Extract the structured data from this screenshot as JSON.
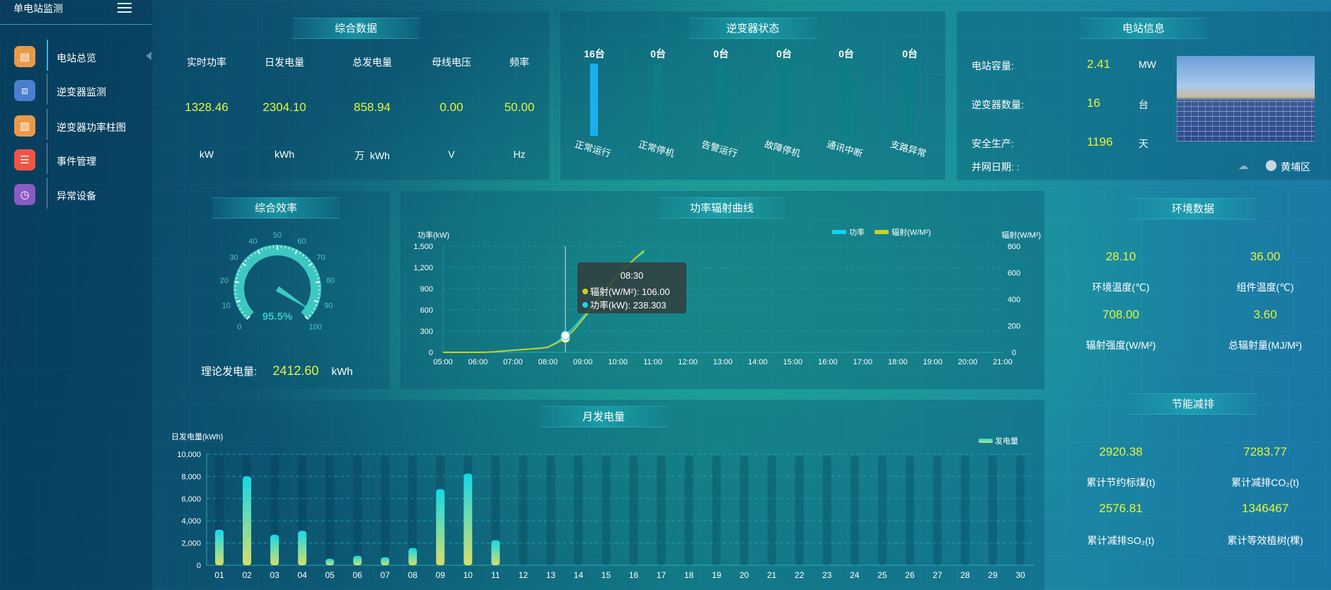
{
  "sidebar": {
    "title": "单电站监测",
    "menu_icon": "hamburger-icon",
    "items": [
      {
        "label": "电站总览",
        "icon": "document-icon",
        "color": "#e89a4a",
        "active": true
      },
      {
        "label": "逆变器监测",
        "icon": "monitor-icon",
        "color": "#4a7fd0",
        "active": false
      },
      {
        "label": "逆变器功率柱图",
        "icon": "bar-chart-icon",
        "color": "#e89a4a",
        "active": false
      },
      {
        "label": "事件管理",
        "icon": "notepad-icon",
        "color": "#ee5544",
        "active": false
      },
      {
        "label": "异常设备",
        "icon": "clock-list-icon",
        "color": "#8a5bc4",
        "active": false
      }
    ]
  },
  "summary": {
    "title": "综合数据",
    "columns": [
      {
        "label": "实时功率",
        "value": "1328.46",
        "unit": "kW"
      },
      {
        "label": "日发电量",
        "value": "2304.10",
        "unit": "kWh"
      },
      {
        "label": "总发电量",
        "value": "858.94",
        "unit": "万  kWh"
      },
      {
        "label": "母线电压",
        "value": "0.00",
        "unit": "V"
      },
      {
        "label": "频率",
        "value": "50.00",
        "unit": "Hz"
      }
    ]
  },
  "inverter_status": {
    "title": "逆变器状态",
    "total": 16,
    "items": [
      {
        "count": "16台",
        "label": "正常运行",
        "value": 16,
        "color": "#1ab0f0"
      },
      {
        "count": "0台",
        "label": "正常停机",
        "value": 0,
        "color": "#0b8a8a"
      },
      {
        "count": "0台",
        "label": "告警运行",
        "value": 0,
        "color": "#0b8a8a"
      },
      {
        "count": "0台",
        "label": "故障停机",
        "value": 0,
        "color": "#0b8a8a"
      },
      {
        "count": "0台",
        "label": "通讯中断",
        "value": 0,
        "color": "#0b8a8a"
      },
      {
        "count": "0台",
        "label": "支路异常",
        "value": 0,
        "color": "#0b8a8a"
      }
    ]
  },
  "station_info": {
    "title": "电站信息",
    "rows": [
      {
        "label": "电站容量:",
        "value": "2.41",
        "unit": "MW"
      },
      {
        "label": "逆变器数量:",
        "value": "16",
        "unit": "台"
      },
      {
        "label": "安全生产:",
        "value": "1196",
        "unit": "天"
      }
    ],
    "grid_date_label": "并网日期: :",
    "weather_icon": "cloud-icon",
    "location_icon": "map-pin-icon",
    "location": "黄埔区"
  },
  "efficiency": {
    "title": "综合效率",
    "value": 95.5,
    "value_text": "95.5%",
    "ticks": [
      "0",
      "10",
      "20",
      "30",
      "40",
      "50",
      "60",
      "70",
      "80",
      "90",
      "100"
    ],
    "theory_label": "理论发电量:",
    "theory_value": "2412.60",
    "theory_unit": "kWh",
    "color": "#3cc8c0"
  },
  "power_chart": {
    "title": "功率辐射曲线",
    "chart_data": {
      "type": "line",
      "x_ticks": [
        "05:00",
        "06:00",
        "07:00",
        "08:00",
        "09:00",
        "10:00",
        "11:00",
        "12:00",
        "13:00",
        "14:00",
        "15:00",
        "16:00",
        "17:00",
        "18:00",
        "19:00",
        "20:00",
        "21:00"
      ],
      "x": [
        "05:00",
        "05:15",
        "05:30",
        "05:45",
        "06:00",
        "06:15",
        "06:30",
        "06:45",
        "07:00",
        "07:15",
        "07:30",
        "07:45",
        "08:00",
        "08:15",
        "08:30",
        "08:45",
        "09:00",
        "09:15",
        "09:30",
        "09:45",
        "10:00",
        "10:15",
        "10:30",
        "10:45"
      ],
      "ylabel_left": "功率(kW)",
      "ylabel_right": "辐射(W/M²)",
      "ylim_left": [
        0,
        1500
      ],
      "ylim_right": [
        0,
        800
      ],
      "y_ticks_left": [
        "0",
        "300",
        "600",
        "900",
        "1,200",
        "1,500"
      ],
      "y_ticks_right": [
        "0",
        "200",
        "400",
        "600",
        "800"
      ],
      "legend_position": "top-right",
      "series": [
        {
          "name": "功率",
          "axis": "left",
          "color": "#1ad0f0",
          "values": [
            0,
            0,
            0,
            0,
            0,
            2,
            8,
            20,
            30,
            38,
            48,
            58,
            70,
            140,
            238.303,
            360,
            500,
            640,
            790,
            940,
            1080,
            1210,
            1330,
            1420
          ]
        },
        {
          "name": "辐射(W/M²)",
          "axis": "right",
          "color": "#c8d21a",
          "values": [
            0,
            0,
            0,
            0,
            0,
            1,
            4,
            10,
            15,
            20,
            25,
            30,
            38,
            70,
            106,
            170,
            250,
            330,
            415,
            500,
            575,
            645,
            710,
            768
          ]
        }
      ],
      "tooltip": {
        "time": "08:30",
        "lines": [
          "辐射(W/M²): 106.00",
          "功率(kW): 238.303"
        ]
      }
    }
  },
  "environment": {
    "title": "环境数据",
    "items": [
      {
        "value": "28.10",
        "label": "环境温度(℃)"
      },
      {
        "value": "36.00",
        "label": "组件温度(℃)"
      },
      {
        "value": "708.00",
        "label": "辐射强度(W/M²)"
      },
      {
        "value": "3.60",
        "label": "总辐射量(MJ/M²)"
      }
    ]
  },
  "energy_saving": {
    "title": "节能减排",
    "items": [
      {
        "value": "2920.38",
        "label": "累计节约标煤(t)"
      },
      {
        "value": "7283.77",
        "label": "累计减排CO₂(t)"
      },
      {
        "value": "2576.81",
        "label": "累计减排SO₂(t)"
      },
      {
        "value": "1346467",
        "label": "累计等效植树(棵)"
      }
    ]
  },
  "monthly_chart": {
    "title": "月发电量",
    "chart_data": {
      "type": "bar",
      "ylabel": "日发电量(kWh)",
      "ylim": [
        0,
        10000
      ],
      "y_ticks": [
        "0",
        "2,000",
        "4,000",
        "6,000",
        "8,000",
        "10,000"
      ],
      "categories": [
        "01",
        "02",
        "03",
        "04",
        "05",
        "06",
        "07",
        "08",
        "09",
        "10",
        "11",
        "12",
        "13",
        "14",
        "15",
        "16",
        "17",
        "18",
        "19",
        "20",
        "21",
        "22",
        "23",
        "24",
        "25",
        "26",
        "27",
        "28",
        "29",
        "30"
      ],
      "series": [
        {
          "name": "发电量",
          "values": [
            3200,
            8000,
            2750,
            3100,
            580,
            850,
            720,
            1550,
            6850,
            8250,
            2250,
            0,
            0,
            0,
            0,
            0,
            0,
            0,
            0,
            0,
            0,
            0,
            0,
            0,
            0,
            0,
            0,
            0,
            0,
            0
          ]
        }
      ],
      "legend_position": "top-right",
      "gradient": [
        "#12d8ea",
        "#d6df6a"
      ]
    }
  }
}
